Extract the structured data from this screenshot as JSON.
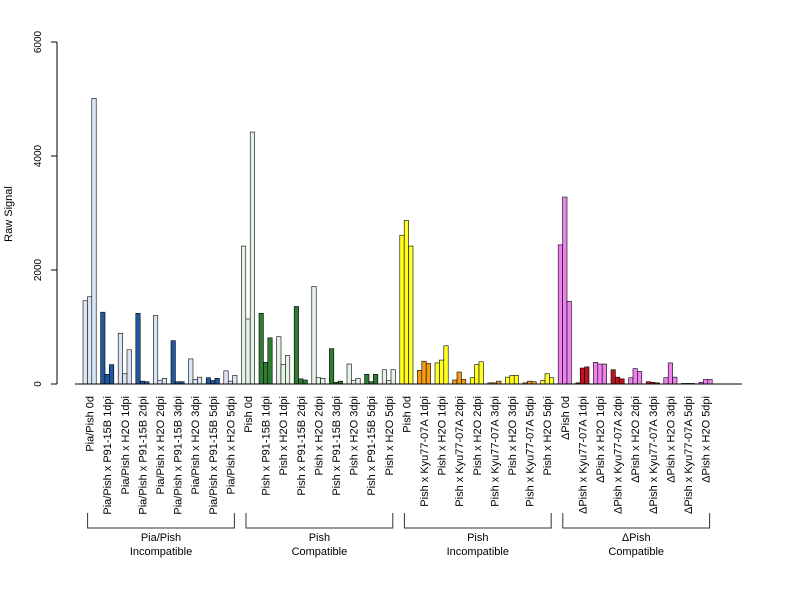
{
  "chart_data": {
    "type": "bar",
    "ylabel": "Raw Signal",
    "xlabel": "",
    "ylim": [
      0,
      6000
    ],
    "yticks": [
      "0",
      "2000",
      "4000",
      "6000"
    ],
    "grid": false,
    "group_labels": [
      {
        "line1": "Pia/Pish",
        "line2": "Incompatible"
      },
      {
        "line1": "Pish",
        "line2": "Compatible"
      },
      {
        "line1": "Pish",
        "line2": "Incompatible"
      },
      {
        "line1": "ΔPish",
        "line2": "Compatible"
      }
    ],
    "categories": [
      {
        "label": "Pia/Pish 0d",
        "group": 0,
        "values": [
          1460,
          1530,
          5010
        ],
        "colors": [
          "#dbe6f5",
          "#dbe6f5",
          "#dbe6f5"
        ]
      },
      {
        "label": "Pia/Pish x P91-15B 1dpi",
        "group": 0,
        "values": [
          1260,
          170,
          340
        ],
        "colors": [
          "#1f5aa0",
          "#1f5aa0",
          "#1f5aa0"
        ]
      },
      {
        "label": "Pia/Pish x H2O 1dpi",
        "group": 0,
        "values": [
          890,
          180,
          600
        ],
        "colors": [
          "#dbe6f5",
          "#dbe6f5",
          "#dbe6f5"
        ]
      },
      {
        "label": "Pia/Pish x P91-15B 2dpi",
        "group": 0,
        "values": [
          1240,
          50,
          40
        ],
        "colors": [
          "#1f5aa0",
          "#1f5aa0",
          "#1f5aa0"
        ]
      },
      {
        "label": "Pia/Pish x H2O 2dpi",
        "group": 0,
        "values": [
          1200,
          60,
          100
        ],
        "colors": [
          "#dbe6f5",
          "#dbe6f5",
          "#dbe6f5"
        ]
      },
      {
        "label": "Pia/Pish x P91-15B 3dpi",
        "group": 0,
        "values": [
          760,
          40,
          40
        ],
        "colors": [
          "#1f5aa0",
          "#1f5aa0",
          "#1f5aa0"
        ]
      },
      {
        "label": "Pia/Pish x H2O 3dpi",
        "group": 0,
        "values": [
          440,
          80,
          120
        ],
        "colors": [
          "#dbe6f5",
          "#dbe6f5",
          "#dbe6f5"
        ]
      },
      {
        "label": "Pia/Pish x P91-15B 5dpi",
        "group": 0,
        "values": [
          110,
          60,
          100
        ],
        "colors": [
          "#1f5aa0",
          "#1f5aa0",
          "#1f5aa0"
        ]
      },
      {
        "label": "Pia/Pish x H2O 5dpi",
        "group": 0,
        "values": [
          230,
          50,
          150
        ],
        "colors": [
          "#dbe6f5",
          "#dbe6f5",
          "#dbe6f5"
        ]
      },
      {
        "label": "Pish 0d",
        "group": 1,
        "values": [
          2420,
          1140,
          4420
        ],
        "colors": [
          "#e5f3e5",
          "#e5f3e5",
          "#e5f3e5"
        ]
      },
      {
        "label": "Pish x P91-15B 1dpi",
        "group": 1,
        "values": [
          1240,
          380,
          810
        ],
        "colors": [
          "#2e7d32",
          "#2e7d32",
          "#2e7d32"
        ]
      },
      {
        "label": "Pish x H2O 1dpi",
        "group": 1,
        "values": [
          830,
          340,
          500
        ],
        "colors": [
          "#e5f3e5",
          "#e5f3e5",
          "#e5f3e5"
        ]
      },
      {
        "label": "Pish x P91-15B 2dpi",
        "group": 1,
        "values": [
          1360,
          90,
          70
        ],
        "colors": [
          "#2e7d32",
          "#2e7d32",
          "#2e7d32"
        ]
      },
      {
        "label": "Pish x H2O 2dpi",
        "group": 1,
        "values": [
          1710,
          110,
          100
        ],
        "colors": [
          "#e5f3e5",
          "#e5f3e5",
          "#e5f3e5"
        ]
      },
      {
        "label": "Pish x P91-15B 3dpi",
        "group": 1,
        "values": [
          620,
          30,
          50
        ],
        "colors": [
          "#2e7d32",
          "#2e7d32",
          "#2e7d32"
        ]
      },
      {
        "label": "Pish x H2O 3dpi",
        "group": 1,
        "values": [
          350,
          60,
          100
        ],
        "colors": [
          "#e5f3e5",
          "#e5f3e5",
          "#e5f3e5"
        ]
      },
      {
        "label": "Pish x P91-15B 5dpi",
        "group": 1,
        "values": [
          170,
          40,
          170
        ],
        "colors": [
          "#2e7d32",
          "#2e7d32",
          "#2e7d32"
        ]
      },
      {
        "label": "Pish x H2O 5dpi",
        "group": 1,
        "values": [
          250,
          60,
          250
        ],
        "colors": [
          "#e5f3e5",
          "#e5f3e5",
          "#e5f3e5"
        ]
      },
      {
        "label": "Pish 0d",
        "group": 2,
        "values": [
          2610,
          2870,
          2420
        ],
        "colors": [
          "#ffff22",
          "#ffff22",
          "#ffff22"
        ]
      },
      {
        "label": "Pish x Kyu77-07A 1dpi",
        "group": 2,
        "values": [
          240,
          400,
          360
        ],
        "colors": [
          "#f39c12",
          "#f39c12",
          "#f39c12"
        ]
      },
      {
        "label": "Pish x H2O 1dpi",
        "group": 2,
        "values": [
          370,
          420,
          670
        ],
        "colors": [
          "#ffff22",
          "#ffff22",
          "#ffff22"
        ]
      },
      {
        "label": "Pish x Kyu77-07A 2dpi",
        "group": 2,
        "values": [
          70,
          210,
          80
        ],
        "colors": [
          "#f39c12",
          "#f39c12",
          "#f39c12"
        ]
      },
      {
        "label": "Pish x H2O 2dpi",
        "group": 2,
        "values": [
          110,
          340,
          390
        ],
        "colors": [
          "#ffff22",
          "#ffff22",
          "#ffff22"
        ]
      },
      {
        "label": "Pish x Kyu77-07A 3dpi",
        "group": 2,
        "values": [
          20,
          20,
          50
        ],
        "colors": [
          "#f39c12",
          "#f39c12",
          "#f39c12"
        ]
      },
      {
        "label": "Pish x H2O 3dpi",
        "group": 2,
        "values": [
          120,
          150,
          150
        ],
        "colors": [
          "#ffff22",
          "#ffff22",
          "#ffff22"
        ]
      },
      {
        "label": "Pish x Kyu77-07A 5dpi",
        "group": 2,
        "values": [
          20,
          50,
          40
        ],
        "colors": [
          "#f39c12",
          "#f39c12",
          "#f39c12"
        ]
      },
      {
        "label": "Pish x H2O 5dpi",
        "group": 2,
        "values": [
          60,
          180,
          110
        ],
        "colors": [
          "#ffff22",
          "#ffff22",
          "#ffff22"
        ]
      },
      {
        "label": "ΔPish 0d",
        "group": 3,
        "values": [
          2440,
          3280,
          1450
        ],
        "colors": [
          "#ee82ee",
          "#ee82ee",
          "#ee82ee"
        ]
      },
      {
        "label": "ΔPish x Kyu77-07A 1dpi",
        "group": 3,
        "values": [
          20,
          280,
          300
        ],
        "colors": [
          "#c0111f",
          "#c0111f",
          "#c0111f"
        ]
      },
      {
        "label": "ΔPish x H2O 1dpi",
        "group": 3,
        "values": [
          380,
          350,
          350
        ],
        "colors": [
          "#ee82ee",
          "#ee82ee",
          "#ee82ee"
        ]
      },
      {
        "label": "ΔPish x Kyu77-07A 2dpi",
        "group": 3,
        "values": [
          250,
          120,
          90
        ],
        "colors": [
          "#c0111f",
          "#c0111f",
          "#c0111f"
        ]
      },
      {
        "label": "ΔPish x H2O 2dpi",
        "group": 3,
        "values": [
          110,
          270,
          220
        ],
        "colors": [
          "#ee82ee",
          "#ee82ee",
          "#ee82ee"
        ]
      },
      {
        "label": "ΔPish x Kyu77-07A 3dpi",
        "group": 3,
        "values": [
          40,
          30,
          20
        ],
        "colors": [
          "#c0111f",
          "#c0111f",
          "#c0111f"
        ]
      },
      {
        "label": "ΔPish x H2O 3dpi",
        "group": 3,
        "values": [
          110,
          370,
          120
        ],
        "colors": [
          "#ee82ee",
          "#ee82ee",
          "#ee82ee"
        ]
      },
      {
        "label": "ΔPish x Kyu77-07A 5dpi",
        "group": 3,
        "values": [
          10,
          10,
          10
        ],
        "colors": [
          "#c0111f",
          "#c0111f",
          "#c0111f"
        ]
      },
      {
        "label": "ΔPish x H2O 5dpi",
        "group": 3,
        "values": [
          30,
          80,
          80
        ],
        "colors": [
          "#ee82ee",
          "#ee82ee",
          "#ee82ee"
        ]
      }
    ]
  }
}
